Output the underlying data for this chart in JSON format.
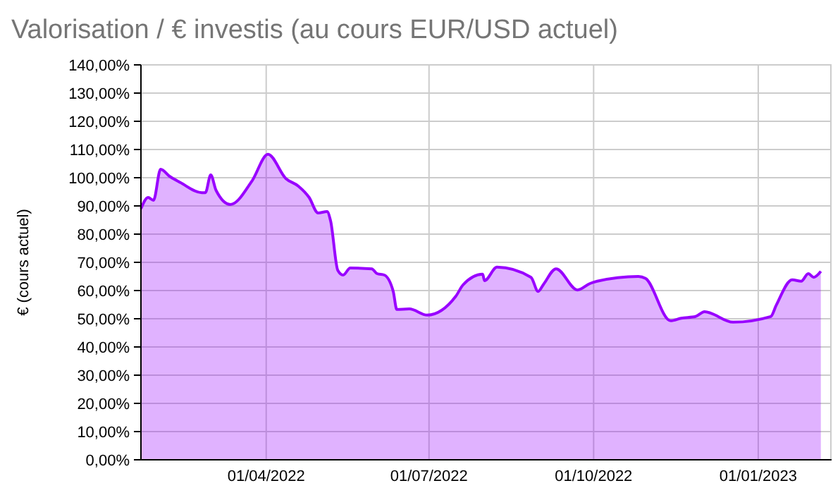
{
  "chart_data": {
    "type": "area",
    "title": "Valorisation / € investis (au cours EUR/USD actuel)",
    "ylabel": "€ (cours actuel)",
    "x": [
      "2022-01-21",
      "2022-01-25",
      "2022-01-28",
      "2022-02-01",
      "2022-02-06",
      "2022-02-12",
      "2022-02-24",
      "2022-02-26",
      "2022-03-01",
      "2022-03-04",
      "2022-03-12",
      "2022-03-24",
      "2022-04-02",
      "2022-04-12",
      "2022-04-19",
      "2022-04-25",
      "2022-04-30",
      "2022-05-05",
      "2022-05-07",
      "2022-05-11",
      "2022-05-14",
      "2022-05-18",
      "2022-05-30",
      "2022-06-02",
      "2022-06-06",
      "2022-06-11",
      "2022-06-13",
      "2022-06-20",
      "2022-06-30",
      "2022-07-16",
      "2022-07-20",
      "2022-07-31",
      "2022-08-01",
      "2022-08-08",
      "2022-08-27",
      "2022-08-31",
      "2022-09-03",
      "2022-09-10",
      "2022-09-22",
      "2022-09-29",
      "2022-10-03",
      "2022-10-26",
      "2022-10-30",
      "2022-11-13",
      "2022-11-19",
      "2022-11-27",
      "2022-12-02",
      "2022-12-18",
      "2023-01-08",
      "2023-01-11",
      "2023-01-20",
      "2023-01-25",
      "2023-01-29",
      "2023-02-01",
      "2023-02-05"
    ],
    "series": [
      {
        "color": "#9900ff",
        "values": [
          89,
          93,
          92,
          103,
          100.5,
          98.3,
          94.7,
          94.7,
          101,
          95.5,
          90.5,
          98.8,
          108.3,
          99.7,
          97,
          93,
          87.5,
          88,
          84.7,
          67.2,
          65.5,
          68,
          67.7,
          66,
          65.5,
          59.7,
          53.3,
          53.5,
          51.3,
          58,
          62,
          65.8,
          63.5,
          68.3,
          64.7,
          59.7,
          62.2,
          67.7,
          60.2,
          62.5,
          63.3,
          65,
          64.3,
          49.3,
          50.2,
          50.8,
          52.5,
          48.8,
          50.8,
          54.7,
          63.8,
          63.3,
          66,
          64.7,
          66.8
        ]
      }
    ],
    "xlim": [
      "2022-01-21",
      "2023-02-11"
    ],
    "xticks": [
      {
        "value": "2022-04-01",
        "label": "01/04/2022"
      },
      {
        "value": "2022-07-01",
        "label": "01/07/2022"
      },
      {
        "value": "2022-10-01",
        "label": "01/10/2022"
      },
      {
        "value": "2023-01-01",
        "label": "01/01/2023"
      }
    ],
    "ylim": [
      0,
      140
    ],
    "yticks": [
      {
        "value": 0,
        "label": "0,00%"
      },
      {
        "value": 10,
        "label": "10,00%"
      },
      {
        "value": 20,
        "label": "20,00%"
      },
      {
        "value": 30,
        "label": "30,00%"
      },
      {
        "value": 40,
        "label": "40,00%"
      },
      {
        "value": 50,
        "label": "50,00%"
      },
      {
        "value": 60,
        "label": "60,00%"
      },
      {
        "value": 70,
        "label": "70,00%"
      },
      {
        "value": 80,
        "label": "80,00%"
      },
      {
        "value": 90,
        "label": "90,00%"
      },
      {
        "value": 100,
        "label": "100,00%"
      },
      {
        "value": 110,
        "label": "110,00%"
      },
      {
        "value": 120,
        "label": "120,00%"
      },
      {
        "value": 130,
        "label": "130,00%"
      },
      {
        "value": 140,
        "label": "140,00%"
      }
    ],
    "grid": true
  }
}
